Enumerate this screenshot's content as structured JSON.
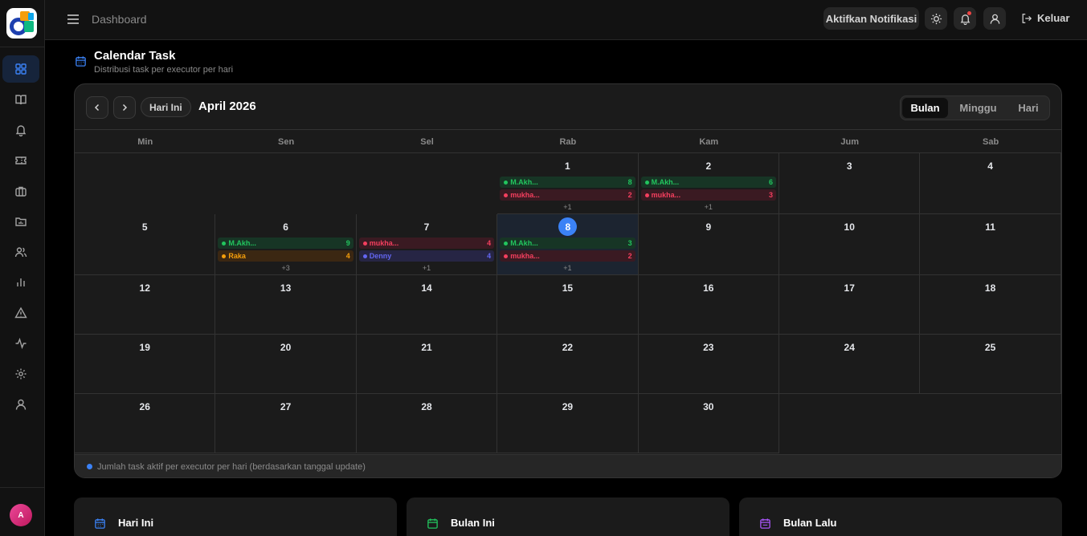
{
  "header": {
    "breadcrumb": "Dashboard",
    "notif_label": "Aktifkan Notifikasi",
    "logout_label": "Keluar"
  },
  "user": {
    "avatar_initial": "A"
  },
  "page": {
    "title": "Calendar Task",
    "subtitle": "Distribusi task per executor per hari"
  },
  "calendar": {
    "today_label": "Hari Ini",
    "month_title": "April 2026",
    "views": [
      "Bulan",
      "Minggu",
      "Hari"
    ],
    "active_view": "Bulan",
    "weekdays": [
      "Min",
      "Sen",
      "Sel",
      "Rab",
      "Kam",
      "Jum",
      "Sab"
    ],
    "today_day": "8",
    "weeks": [
      [
        {
          "day": ""
        },
        {
          "day": ""
        },
        {
          "day": ""
        },
        {
          "day": "1",
          "events": [
            {
              "name": "M.Akh...",
              "count": "8",
              "color": "green"
            },
            {
              "name": "mukha...",
              "count": "2",
              "color": "red"
            }
          ],
          "more": "+1"
        },
        {
          "day": "2",
          "events": [
            {
              "name": "M.Akh...",
              "count": "6",
              "color": "green"
            },
            {
              "name": "mukha...",
              "count": "3",
              "color": "red"
            }
          ],
          "more": "+1"
        },
        {
          "day": "3"
        },
        {
          "day": "4"
        }
      ],
      [
        {
          "day": "5"
        },
        {
          "day": "6",
          "events": [
            {
              "name": "M.Akh...",
              "count": "9",
              "color": "green"
            },
            {
              "name": "Raka",
              "count": "4",
              "color": "orange"
            }
          ],
          "more": "+3"
        },
        {
          "day": "7",
          "events": [
            {
              "name": "mukha...",
              "count": "4",
              "color": "red"
            },
            {
              "name": "Denny",
              "count": "4",
              "color": "purple"
            }
          ],
          "more": "+1"
        },
        {
          "day": "8",
          "today": true,
          "events": [
            {
              "name": "M.Akh...",
              "count": "3",
              "color": "green"
            },
            {
              "name": "mukha...",
              "count": "2",
              "color": "red"
            }
          ],
          "more": "+1"
        },
        {
          "day": "9"
        },
        {
          "day": "10"
        },
        {
          "day": "11"
        }
      ],
      [
        {
          "day": "12"
        },
        {
          "day": "13"
        },
        {
          "day": "14"
        },
        {
          "day": "15"
        },
        {
          "day": "16"
        },
        {
          "day": "17"
        },
        {
          "day": "18"
        }
      ],
      [
        {
          "day": "19"
        },
        {
          "day": "20"
        },
        {
          "day": "21"
        },
        {
          "day": "22"
        },
        {
          "day": "23"
        },
        {
          "day": "24"
        },
        {
          "day": "25"
        }
      ],
      [
        {
          "day": "26"
        },
        {
          "day": "27"
        },
        {
          "day": "28"
        },
        {
          "day": "29"
        },
        {
          "day": "30"
        },
        {
          "day": ""
        },
        {
          "day": ""
        }
      ]
    ],
    "footer_note": "Jumlah task aktif per executor per hari (berdasarkan tanggal update)"
  },
  "stats": [
    {
      "label": "Hari Ini",
      "color": "#3b82f6"
    },
    {
      "label": "Bulan Ini",
      "color": "#22c55e"
    },
    {
      "label": "Bulan Lalu",
      "color": "#a855f7"
    }
  ]
}
